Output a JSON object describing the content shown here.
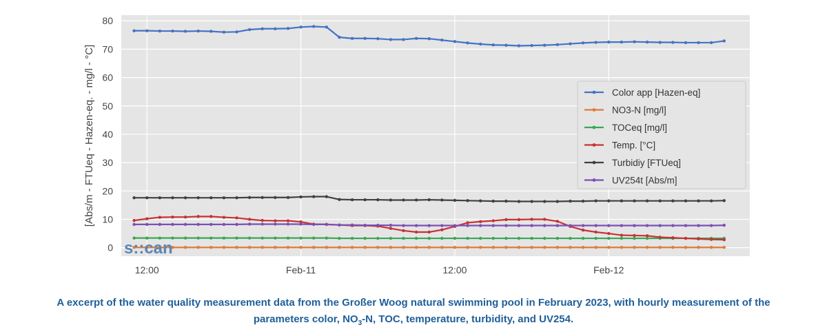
{
  "chart_data": {
    "type": "line",
    "xlabel": "",
    "ylabel": "[Abs/m - FTUeq - Hazen-eq. - mg/l - °C]",
    "ylim": [
      -3,
      82
    ],
    "yticks": [
      0,
      10,
      20,
      30,
      40,
      50,
      60,
      70,
      80
    ],
    "x_units": "hours from first sample (hourly)",
    "xticks": [
      {
        "x": 1,
        "label": "12:00"
      },
      {
        "x": 13,
        "label": "Feb-11"
      },
      {
        "x": 25,
        "label": "12:00"
      },
      {
        "x": 37,
        "label": "Feb-12"
      }
    ],
    "xlim": [
      -1,
      48
    ],
    "grid": true,
    "legend_position": "right",
    "series": [
      {
        "name": "Color app [Hazen-eq]",
        "color": "#4472c4",
        "values": [
          76.5,
          76.5,
          76.4,
          76.4,
          76.3,
          76.4,
          76.3,
          76.0,
          76.1,
          76.9,
          77.2,
          77.2,
          77.3,
          77.8,
          78.0,
          77.8,
          74.2,
          73.8,
          73.8,
          73.7,
          73.4,
          73.4,
          73.8,
          73.7,
          73.2,
          72.7,
          72.2,
          71.8,
          71.5,
          71.4,
          71.2,
          71.3,
          71.4,
          71.6,
          71.9,
          72.2,
          72.4,
          72.5,
          72.5,
          72.6,
          72.5,
          72.4,
          72.4,
          72.3,
          72.3,
          72.3,
          72.9
        ]
      },
      {
        "name": "NO3-N [mg/l]",
        "color": "#e07b39",
        "values": [
          0.1,
          0.1,
          0.1,
          0.1,
          0.1,
          0.1,
          0.1,
          0.1,
          0.1,
          0.1,
          0.1,
          0.1,
          0.1,
          0.1,
          0.1,
          0.1,
          0.1,
          0.1,
          0.1,
          0.1,
          0.1,
          0.1,
          0.1,
          0.1,
          0.1,
          0.1,
          0.1,
          0.1,
          0.1,
          0.1,
          0.1,
          0.1,
          0.1,
          0.1,
          0.1,
          0.1,
          0.1,
          0.1,
          0.1,
          0.1,
          0.1,
          0.1,
          0.1,
          0.1,
          0.1,
          0.1,
          0.1
        ]
      },
      {
        "name": "TOCeq [mg/l]",
        "color": "#3aa655",
        "values": [
          3.4,
          3.4,
          3.4,
          3.4,
          3.4,
          3.4,
          3.4,
          3.4,
          3.4,
          3.4,
          3.4,
          3.4,
          3.4,
          3.4,
          3.4,
          3.4,
          3.3,
          3.3,
          3.3,
          3.3,
          3.3,
          3.3,
          3.3,
          3.3,
          3.3,
          3.3,
          3.3,
          3.3,
          3.3,
          3.3,
          3.3,
          3.3,
          3.3,
          3.3,
          3.3,
          3.3,
          3.3,
          3.3,
          3.3,
          3.3,
          3.3,
          3.3,
          3.3,
          3.3,
          3.3,
          3.3,
          3.3
        ]
      },
      {
        "name": "Temp. [°C]",
        "color": "#c63232",
        "values": [
          9.6,
          10.2,
          10.7,
          10.8,
          10.8,
          11.0,
          11.0,
          10.7,
          10.5,
          10.0,
          9.6,
          9.5,
          9.5,
          9.1,
          8.3,
          8.2,
          8.0,
          7.8,
          7.8,
          7.6,
          6.8,
          6.0,
          5.5,
          5.5,
          6.3,
          7.5,
          8.8,
          9.2,
          9.5,
          9.9,
          9.9,
          10.0,
          10.0,
          9.3,
          7.5,
          6.2,
          5.5,
          5.0,
          4.4,
          4.3,
          4.2,
          3.7,
          3.5,
          3.3,
          3.1,
          2.9,
          2.8
        ]
      },
      {
        "name": "Turbidiy [FTUeq]",
        "color": "#3d4045",
        "values": [
          17.6,
          17.6,
          17.6,
          17.6,
          17.6,
          17.6,
          17.6,
          17.6,
          17.6,
          17.7,
          17.7,
          17.7,
          17.7,
          17.9,
          18.0,
          18.0,
          17.0,
          16.9,
          16.9,
          16.9,
          16.8,
          16.8,
          16.8,
          16.9,
          16.8,
          16.7,
          16.6,
          16.5,
          16.4,
          16.4,
          16.3,
          16.3,
          16.3,
          16.3,
          16.4,
          16.4,
          16.5,
          16.5,
          16.5,
          16.5,
          16.5,
          16.5,
          16.5,
          16.5,
          16.5,
          16.5,
          16.6
        ]
      },
      {
        "name": "UV254t [Abs/m]",
        "color": "#7b4fb5",
        "values": [
          8.2,
          8.2,
          8.2,
          8.2,
          8.2,
          8.2,
          8.2,
          8.2,
          8.2,
          8.3,
          8.3,
          8.3,
          8.3,
          8.3,
          8.2,
          8.2,
          8.0,
          8.0,
          7.9,
          7.9,
          7.9,
          7.8,
          7.8,
          7.8,
          7.8,
          7.8,
          7.8,
          7.8,
          7.8,
          7.8,
          7.8,
          7.8,
          7.8,
          7.8,
          7.8,
          7.8,
          7.8,
          7.8,
          7.8,
          7.8,
          7.8,
          7.8,
          7.8,
          7.8,
          7.8,
          7.8,
          7.9
        ]
      }
    ]
  },
  "logo": {
    "text": "s::can"
  },
  "caption": {
    "part1": "A excerpt of the water quality measurement data from the Großer Woog natural swimming pool in February 2023, with hourly measurement of the parameters color, NO",
    "sub": "3",
    "part2": "-N, TOC, temperature, turbidity, and UV254."
  }
}
